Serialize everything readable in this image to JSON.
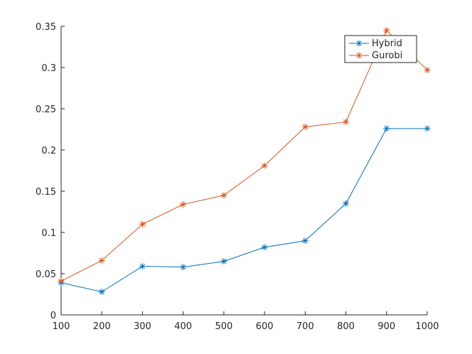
{
  "chart_data": {
    "type": "line",
    "title": "",
    "xlabel": "",
    "ylabel": "",
    "x": [
      100,
      200,
      300,
      400,
      500,
      600,
      700,
      800,
      900,
      1000
    ],
    "xlim": [
      100,
      1000
    ],
    "ylim": [
      0,
      0.35
    ],
    "xticks": [
      100,
      200,
      300,
      400,
      500,
      600,
      700,
      800,
      900,
      1000
    ],
    "yticks": [
      0,
      0.05,
      0.1,
      0.15,
      0.2,
      0.25,
      0.3,
      0.35
    ],
    "xtick_labels": [
      "100",
      "200",
      "300",
      "400",
      "500",
      "600",
      "700",
      "800",
      "900",
      "1000"
    ],
    "ytick_labels": [
      "0",
      "0.05",
      "0.1",
      "0.15",
      "0.2",
      "0.25",
      "0.3",
      "0.35"
    ],
    "grid": false,
    "legend_position": "top-right",
    "series": [
      {
        "name": "Hybrid",
        "color": "#0072BD",
        "marker": "asterisk",
        "values": [
          0.039,
          0.028,
          0.059,
          0.058,
          0.065,
          0.082,
          0.09,
          0.135,
          0.226,
          0.226
        ]
      },
      {
        "name": "Gurobi",
        "color": "#D95319",
        "marker": "asterisk",
        "values": [
          0.041,
          0.066,
          0.11,
          0.134,
          0.145,
          0.181,
          0.228,
          0.234,
          0.345,
          0.297
        ]
      }
    ]
  }
}
